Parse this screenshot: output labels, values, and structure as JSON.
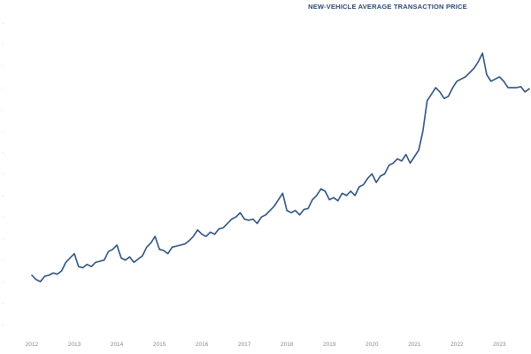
{
  "title": "NEW-VEHICLE AVERAGE TRANSACTION PRICE",
  "colors": {
    "line": "#2e5480",
    "title": "#2b4a70",
    "ticks": "#8a8a8a"
  },
  "chart_data": {
    "type": "line",
    "title": "NEW-VEHICLE AVERAGE TRANSACTION PRICE",
    "xlabel": "",
    "ylabel": "",
    "x_ticks": [
      "2012",
      "2013",
      "2014",
      "2015",
      "2016",
      "2017",
      "2018",
      "2019",
      "2020",
      "2021",
      "2022",
      "2023"
    ],
    "xlim": [
      2012.0,
      2023.7
    ],
    "ylim": [
      0,
      14
    ],
    "y_tick_count": 14,
    "y_tick_labels_visible": false,
    "grid": false,
    "legend": "none",
    "series": [
      {
        "x": [
          2012.0,
          2012.1,
          2012.2,
          2012.3,
          2012.4,
          2012.5,
          2012.6,
          2012.7,
          2012.8,
          2012.9,
          2013.0,
          2013.1,
          2013.2,
          2013.3,
          2013.4,
          2013.5,
          2013.6,
          2013.7,
          2013.8,
          2013.9,
          2014.0,
          2014.1,
          2014.2,
          2014.3,
          2014.4,
          2014.5,
          2014.6,
          2014.7,
          2014.8,
          2014.9,
          2015.0,
          2015.1,
          2015.2,
          2015.3,
          2015.4,
          2015.5,
          2015.6,
          2015.7,
          2015.8,
          2015.9,
          2016.0,
          2016.1,
          2016.2,
          2016.3,
          2016.4,
          2016.5,
          2016.6,
          2016.7,
          2016.8,
          2016.9,
          2017.0,
          2017.1,
          2017.2,
          2017.3,
          2017.4,
          2017.5,
          2017.6,
          2017.7,
          2017.8,
          2017.9,
          2018.0,
          2018.1,
          2018.2,
          2018.3,
          2018.4,
          2018.5,
          2018.6,
          2018.7,
          2018.8,
          2018.9,
          2019.0,
          2019.1,
          2019.2,
          2019.3,
          2019.4,
          2019.5,
          2019.6,
          2019.7,
          2019.8,
          2019.9,
          2020.0,
          2020.1,
          2020.2,
          2020.3,
          2020.4,
          2020.5,
          2020.6,
          2020.7,
          2020.8,
          2020.9,
          2021.0,
          2021.1,
          2021.2,
          2021.3,
          2021.4,
          2021.5,
          2021.6,
          2021.7,
          2021.8,
          2021.9,
          2022.0,
          2022.1,
          2022.2,
          2022.3,
          2022.4,
          2022.5,
          2022.6,
          2022.7,
          2022.8,
          2022.9,
          2023.0,
          2023.1,
          2023.2,
          2023.3,
          2023.4,
          2023.5,
          2023.6,
          2023.7
        ],
        "y": [
          2.3,
          2.1,
          2.0,
          2.25,
          2.3,
          2.4,
          2.35,
          2.5,
          2.9,
          3.1,
          3.3,
          2.7,
          2.65,
          2.8,
          2.7,
          2.9,
          2.95,
          3.0,
          3.4,
          3.5,
          3.7,
          3.1,
          3.0,
          3.15,
          2.9,
          3.05,
          3.2,
          3.6,
          3.8,
          4.1,
          3.5,
          3.45,
          3.3,
          3.6,
          3.65,
          3.7,
          3.75,
          3.9,
          4.1,
          4.4,
          4.2,
          4.1,
          4.3,
          4.2,
          4.45,
          4.5,
          4.7,
          4.9,
          5.0,
          5.2,
          4.9,
          4.85,
          4.9,
          4.7,
          5.0,
          5.1,
          5.3,
          5.5,
          5.8,
          6.1,
          5.3,
          5.2,
          5.3,
          5.1,
          5.35,
          5.4,
          5.8,
          6.0,
          6.3,
          6.2,
          5.8,
          5.9,
          5.75,
          6.1,
          6.0,
          6.2,
          6.0,
          6.4,
          6.5,
          6.8,
          7.0,
          6.6,
          6.9,
          7.0,
          7.4,
          7.5,
          7.7,
          7.6,
          7.9,
          7.5,
          7.8,
          8.1,
          9.0,
          10.4,
          10.7,
          11.0,
          10.8,
          10.5,
          10.6,
          11.0,
          11.3,
          11.4,
          11.5,
          11.7,
          11.9,
          12.2,
          12.6,
          11.6,
          11.3,
          11.4,
          11.5,
          11.3,
          11.0,
          11.0,
          11.0,
          11.05,
          10.8,
          10.95
        ]
      }
    ]
  }
}
